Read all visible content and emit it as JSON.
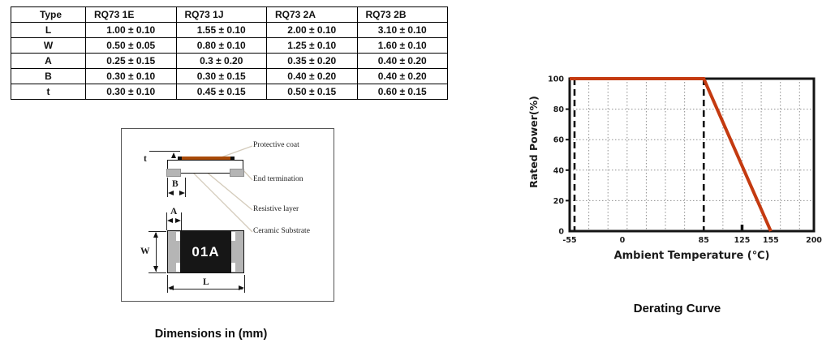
{
  "dimensions_table": {
    "caption": "Dimensions in (mm)",
    "columns": [
      "Type",
      "RQ73 1E",
      "RQ73 1J",
      "RQ73 2A",
      "RQ73 2B"
    ],
    "rows": [
      {
        "label": "L",
        "values": [
          "1.00 ± 0.10",
          "1.55 ± 0.10",
          "2.00 ± 0.10",
          "3.10 ± 0.10"
        ]
      },
      {
        "label": "W",
        "values": [
          "0.50 ± 0.05",
          "0.80 ± 0.10",
          "1.25 ± 0.10",
          "1.60 ± 0.10"
        ]
      },
      {
        "label": "A",
        "values": [
          "0.25 ± 0.15",
          "0.3 ± 0.20",
          "0.35 ± 0.20",
          "0.40 ± 0.20"
        ]
      },
      {
        "label": "B",
        "values": [
          "0.30 ± 0.10",
          "0.30 ± 0.15",
          "0.40 ± 0.20",
          "0.40 ± 0.20"
        ]
      },
      {
        "label": "t",
        "values": [
          "0.30 ± 0.10",
          "0.45 ± 0.15",
          "0.50 ± 0.15",
          "0.60 ± 0.15"
        ]
      }
    ]
  },
  "diagram": {
    "marking": "01A",
    "labels": {
      "protective_coat": "Protective coat",
      "end_termination": "End termination",
      "resistive_layer": "Resistive layer",
      "ceramic_substrate": "Ceramic Substrate"
    },
    "dims": {
      "t": "t",
      "B": "B",
      "A": "A",
      "W": "W",
      "L": "L"
    },
    "colors": {
      "coat": "#a84a08",
      "cap": "#b5b5b5",
      "body_black": "#161616",
      "leader": "#d4cbbb"
    }
  },
  "chart_data": {
    "type": "line",
    "title": "Derating Curve",
    "xlabel": "Ambient Temperature (℃)",
    "ylabel": "Rated Power(%)",
    "xlim": [
      -55,
      200
    ],
    "ylim": [
      0,
      100
    ],
    "x_tick_labels": [
      -55,
      0,
      85,
      125,
      155,
      200
    ],
    "y_tick_labels": [
      0,
      20,
      40,
      60,
      80,
      100
    ],
    "grid_step_x": 20,
    "grid_step_y": 20,
    "grid_style": "dotted",
    "legend_position": "none",
    "dashed_vlines": [
      -55,
      85
    ],
    "bold_tick_x": 125,
    "series": [
      {
        "name": "Rated Power",
        "color": "#c43a10",
        "points": [
          [
            -55,
            100
          ],
          [
            85,
            100
          ],
          [
            155,
            0
          ]
        ]
      }
    ]
  }
}
